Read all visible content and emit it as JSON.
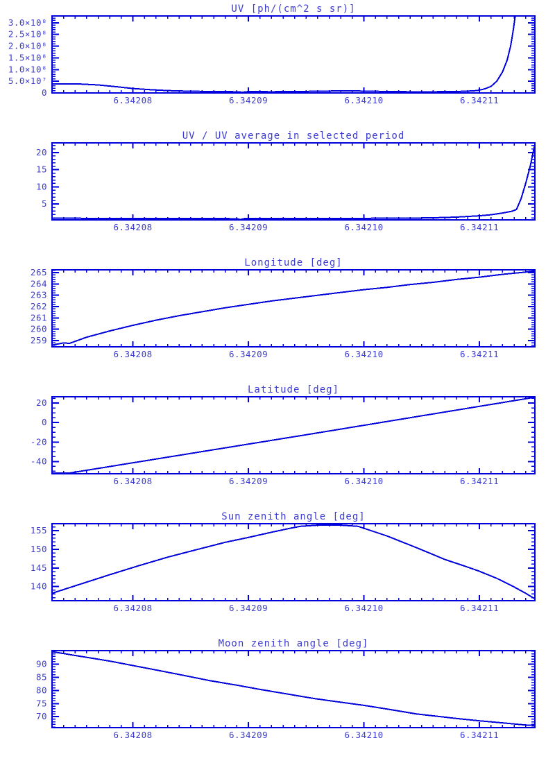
{
  "style": {
    "background": "#ffffff",
    "line_color": "#0000dd",
    "axis_color": "#0000dd",
    "text_color": "#3c3cd2"
  },
  "x_axis": {
    "xlim": [
      6.342073,
      6.3421148
    ],
    "minor_step": 1e-06,
    "ticks": [
      {
        "value": 6.34208,
        "label": "6.34208"
      },
      {
        "value": 6.34209,
        "label": "6.34209"
      },
      {
        "value": 6.3421,
        "label": "6.34210"
      },
      {
        "value": 6.34211,
        "label": "6.34211"
      }
    ]
  },
  "chart_data": [
    {
      "type": "line",
      "title": "UV [ph/(cm^2 s sr)]",
      "xlabel": "",
      "ylabel": "",
      "ylim": [
        0,
        329000000
      ],
      "y_minor_step": 10000000,
      "yticks": [
        {
          "value": 0,
          "label": "0"
        },
        {
          "value": 50000000,
          "label": "5.0×10⁷"
        },
        {
          "value": 100000000,
          "label": "1.0×10⁸"
        },
        {
          "value": 150000000,
          "label": "1.5×10⁸"
        },
        {
          "value": 200000000,
          "label": "2.0×10⁸"
        },
        {
          "value": 250000000,
          "label": "2.5×10⁸"
        },
        {
          "value": 300000000,
          "label": "3.0×10⁸"
        }
      ],
      "series": [
        {
          "name": "uv",
          "points": [
            [
              6.342073,
              38000000
            ],
            [
              6.3420755,
              38000000
            ],
            [
              6.342077,
              34000000
            ],
            [
              6.3420785,
              27000000
            ],
            [
              6.34208,
              19000000
            ],
            [
              6.3420815,
              14000000
            ],
            [
              6.342083,
              10000000
            ],
            [
              6.342085,
              7000000
            ],
            [
              6.342087,
              6000000
            ],
            [
              6.342089,
              5000000
            ],
            [
              6.3420895,
              3000000
            ],
            [
              6.34209,
              6000000
            ],
            [
              6.342092,
              5000000
            ],
            [
              6.342094,
              6000000
            ],
            [
              6.342096,
              7000000
            ],
            [
              6.342098,
              9000000
            ],
            [
              6.3421,
              8000000
            ],
            [
              6.342102,
              6000000
            ],
            [
              6.342104,
              5000000
            ],
            [
              6.342106,
              5000000
            ],
            [
              6.342108,
              6000000
            ],
            [
              6.3421095,
              9000000
            ],
            [
              6.34211,
              12000000
            ],
            [
              6.3421105,
              18000000
            ],
            [
              6.342111,
              28000000
            ],
            [
              6.3421115,
              50000000
            ],
            [
              6.342112,
              90000000
            ],
            [
              6.3421124,
              140000000
            ],
            [
              6.3421127,
              200000000
            ],
            [
              6.3421129,
              260000000
            ],
            [
              6.3421131,
              329000000
            ]
          ]
        }
      ]
    },
    {
      "type": "line",
      "title": "UV / UV average in selected period",
      "xlabel": "",
      "ylabel": "",
      "ylim": [
        0.4,
        22.8
      ],
      "y_minor_step": 1,
      "yticks": [
        {
          "value": 5,
          "label": "5"
        },
        {
          "value": 10,
          "label": "10"
        },
        {
          "value": 15,
          "label": "15"
        },
        {
          "value": 20,
          "label": "20"
        }
      ],
      "series": [
        {
          "name": "uv_ratio",
          "points": [
            [
              6.342073,
              0.9
            ],
            [
              6.342076,
              0.85
            ],
            [
              6.34208,
              0.8
            ],
            [
              6.342085,
              0.8
            ],
            [
              6.342089,
              0.75
            ],
            [
              6.3420893,
              0.5
            ],
            [
              6.3420897,
              0.8
            ],
            [
              6.342095,
              0.8
            ],
            [
              6.3421,
              0.85
            ],
            [
              6.342104,
              0.9
            ],
            [
              6.342106,
              1.0
            ],
            [
              6.342108,
              1.2
            ],
            [
              6.34211,
              1.6
            ],
            [
              6.342111,
              1.9
            ],
            [
              6.342112,
              2.4
            ],
            [
              6.3421128,
              2.9
            ],
            [
              6.3421132,
              3.4
            ],
            [
              6.3421136,
              6.5
            ],
            [
              6.342114,
              11.0
            ],
            [
              6.3421144,
              16.0
            ],
            [
              6.3421148,
              22.4
            ]
          ]
        }
      ]
    },
    {
      "type": "line",
      "title": "Longitude [deg]",
      "xlabel": "",
      "ylabel": "",
      "ylim": [
        258.45,
        265.25
      ],
      "y_minor_step": 0.2,
      "yticks": [
        {
          "value": 259,
          "label": "259"
        },
        {
          "value": 260,
          "label": "260"
        },
        {
          "value": 261,
          "label": "261"
        },
        {
          "value": 262,
          "label": "262"
        },
        {
          "value": 263,
          "label": "263"
        },
        {
          "value": 264,
          "label": "264"
        },
        {
          "value": 265,
          "label": "265"
        }
      ],
      "series": [
        {
          "name": "longitude",
          "points": [
            [
              6.342073,
              258.6
            ],
            [
              6.342074,
              258.8
            ],
            [
              6.3420745,
              258.75
            ],
            [
              6.342076,
              259.3
            ],
            [
              6.342078,
              259.85
            ],
            [
              6.34208,
              260.35
            ],
            [
              6.342082,
              260.8
            ],
            [
              6.342084,
              261.2
            ],
            [
              6.342086,
              261.55
            ],
            [
              6.342088,
              261.9
            ],
            [
              6.34209,
              262.2
            ],
            [
              6.342092,
              262.5
            ],
            [
              6.342094,
              262.75
            ],
            [
              6.342096,
              263.0
            ],
            [
              6.342098,
              263.25
            ],
            [
              6.3421,
              263.5
            ],
            [
              6.342102,
              263.7
            ],
            [
              6.342104,
              263.95
            ],
            [
              6.342106,
              264.15
            ],
            [
              6.342108,
              264.4
            ],
            [
              6.34211,
              264.6
            ],
            [
              6.342112,
              264.85
            ],
            [
              6.342114,
              265.05
            ],
            [
              6.3421148,
              265.15
            ]
          ]
        }
      ]
    },
    {
      "type": "line",
      "title": "Latitude [deg]",
      "xlabel": "",
      "ylabel": "",
      "ylim": [
        -52.5,
        26.5
      ],
      "y_minor_step": 5,
      "yticks": [
        {
          "value": -40,
          "label": "-40"
        },
        {
          "value": -20,
          "label": "-20"
        },
        {
          "value": 0,
          "label": "0"
        },
        {
          "value": 20,
          "label": "20"
        }
      ],
      "series": [
        {
          "name": "latitude",
          "points": [
            [
              6.342073,
              -51.8
            ],
            [
              6.3420745,
              -51.8
            ],
            [
              6.342095,
              -12.5
            ],
            [
              6.3421148,
              26.0
            ]
          ]
        }
      ]
    },
    {
      "type": "line",
      "title": "Sun zenith angle [deg]",
      "xlabel": "",
      "ylabel": "",
      "ylim": [
        136.2,
        156.9
      ],
      "y_minor_step": 1,
      "yticks": [
        {
          "value": 140,
          "label": "140"
        },
        {
          "value": 145,
          "label": "145"
        },
        {
          "value": 150,
          "label": "150"
        },
        {
          "value": 155,
          "label": "155"
        }
      ],
      "series": [
        {
          "name": "sun_zenith",
          "points": [
            [
              6.342073,
              138.2
            ],
            [
              6.3420755,
              140.7
            ],
            [
              6.342078,
              143.2
            ],
            [
              6.3420805,
              145.6
            ],
            [
              6.342083,
              147.9
            ],
            [
              6.3420855,
              149.9
            ],
            [
              6.342088,
              151.9
            ],
            [
              6.34209,
              153.2
            ],
            [
              6.342092,
              154.6
            ],
            [
              6.3420935,
              155.6
            ],
            [
              6.3420945,
              156.2
            ],
            [
              6.342096,
              156.5
            ],
            [
              6.342098,
              156.5
            ],
            [
              6.342099,
              156.3
            ],
            [
              6.3420995,
              156.2
            ],
            [
              6.342102,
              153.6
            ],
            [
              6.3421046,
              150.4
            ],
            [
              6.342107,
              147.3
            ],
            [
              6.342109,
              145.2
            ],
            [
              6.34211,
              144.1
            ],
            [
              6.3421115,
              142.2
            ],
            [
              6.342113,
              139.9
            ],
            [
              6.342114,
              138.2
            ],
            [
              6.3421148,
              136.7
            ]
          ]
        }
      ]
    },
    {
      "type": "line",
      "title": "Moon zenith angle [deg]",
      "xlabel": "",
      "ylabel": "",
      "ylim": [
        65.8,
        95.2
      ],
      "y_minor_step": 1,
      "yticks": [
        {
          "value": 70,
          "label": "70"
        },
        {
          "value": 75,
          "label": "75"
        },
        {
          "value": 80,
          "label": "80"
        },
        {
          "value": 85,
          "label": "85"
        },
        {
          "value": 90,
          "label": "90"
        }
      ],
      "series": [
        {
          "name": "moon_zenith",
          "points": [
            [
              6.342073,
              94.8
            ],
            [
              6.3420755,
              93.0
            ],
            [
              6.342078,
              91.2
            ],
            [
              6.34208,
              89.5
            ],
            [
              6.342082,
              87.8
            ],
            [
              6.342084,
              86.1
            ],
            [
              6.3420867,
              83.7
            ],
            [
              6.342089,
              82.0
            ],
            [
              6.342091,
              80.4
            ],
            [
              6.342093,
              78.9
            ],
            [
              6.3420957,
              76.9
            ],
            [
              6.342098,
              75.5
            ],
            [
              6.3421,
              74.3
            ],
            [
              6.342102,
              72.9
            ],
            [
              6.3421046,
              71.0
            ],
            [
              6.342106,
              70.3
            ],
            [
              6.342108,
              69.3
            ],
            [
              6.34211,
              68.4
            ],
            [
              6.3421115,
              67.8
            ],
            [
              6.342113,
              67.2
            ],
            [
              6.342114,
              66.8
            ],
            [
              6.3421148,
              66.6
            ]
          ]
        }
      ]
    }
  ]
}
